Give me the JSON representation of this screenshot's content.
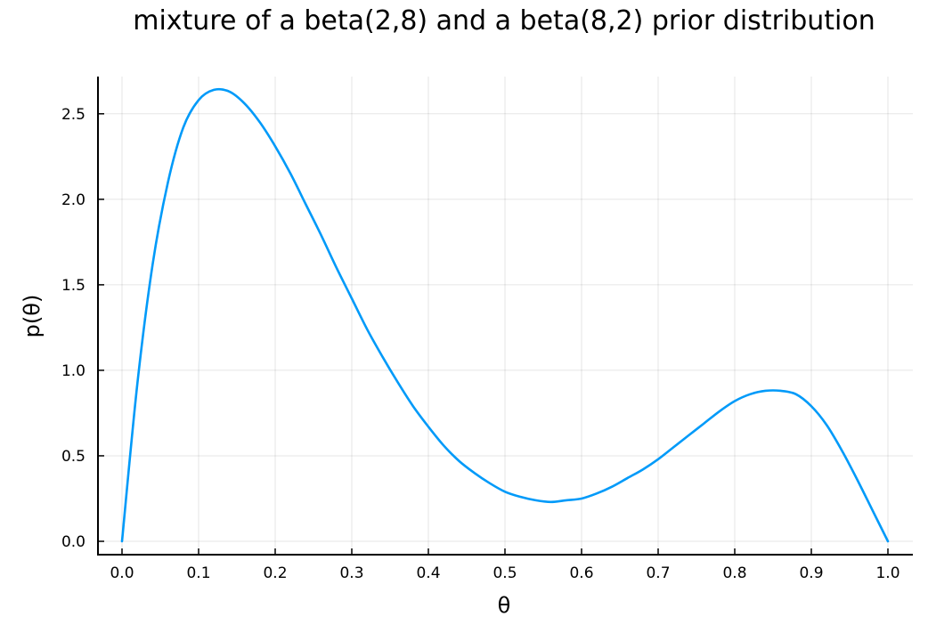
{
  "chart_data": {
    "type": "line",
    "title": "mixture of a beta(2,8) and a beta(8,2) prior distribution",
    "xlabel": "θ",
    "ylabel": "p(θ)",
    "xlim": [
      0.0,
      1.0
    ],
    "ylim": [
      0.0,
      2.65
    ],
    "xticks": [
      0.0,
      0.1,
      0.2,
      0.3,
      0.4,
      0.5,
      0.6,
      0.7,
      0.8,
      0.9,
      1.0
    ],
    "xtick_labels": [
      "0.0",
      "0.1",
      "0.2",
      "0.3",
      "0.4",
      "0.5",
      "0.6",
      "0.7",
      "0.8",
      "0.9",
      "1.0"
    ],
    "yticks": [
      0.0,
      0.5,
      1.0,
      1.5,
      2.0,
      2.5
    ],
    "ytick_labels": [
      "0.0",
      "0.5",
      "1.0",
      "1.5",
      "2.0",
      "2.5"
    ],
    "grid": true,
    "legend": false,
    "series": [
      {
        "color": "#009af9",
        "x": [
          0.0,
          0.02,
          0.04,
          0.06,
          0.08,
          0.1,
          0.12,
          0.14,
          0.16,
          0.18,
          0.2,
          0.22,
          0.24,
          0.26,
          0.28,
          0.3,
          0.32,
          0.34,
          0.36,
          0.38,
          0.4,
          0.42,
          0.44,
          0.46,
          0.48,
          0.5,
          0.52,
          0.54,
          0.56,
          0.58,
          0.6,
          0.62,
          0.64,
          0.66,
          0.68,
          0.7,
          0.72,
          0.74,
          0.76,
          0.78,
          0.8,
          0.82,
          0.84,
          0.86,
          0.88,
          0.9,
          0.92,
          0.94,
          0.96,
          0.98,
          1.0
        ],
        "y": [
          0.0,
          0.92,
          1.62,
          2.1,
          2.42,
          2.58,
          2.64,
          2.63,
          2.56,
          2.45,
          2.31,
          2.15,
          1.97,
          1.79,
          1.6,
          1.42,
          1.24,
          1.08,
          0.93,
          0.79,
          0.67,
          0.56,
          0.47,
          0.4,
          0.34,
          0.29,
          0.26,
          0.24,
          0.23,
          0.24,
          0.25,
          0.28,
          0.32,
          0.37,
          0.42,
          0.48,
          0.55,
          0.62,
          0.69,
          0.76,
          0.82,
          0.86,
          0.88,
          0.88,
          0.86,
          0.79,
          0.68,
          0.53,
          0.36,
          0.18,
          0.0
        ]
      }
    ]
  }
}
